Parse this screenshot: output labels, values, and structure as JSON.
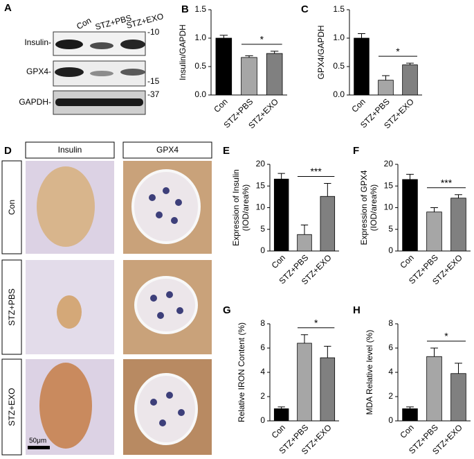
{
  "blot": {
    "label": "A",
    "lanes": [
      "Con",
      "STZ+PBS",
      "STZ+EXO"
    ],
    "bands": [
      "Insulin-",
      "GPX4-",
      "GAPDH-"
    ],
    "markers": [
      "-10",
      "-15",
      "-37"
    ]
  },
  "histology": {
    "label": "D",
    "columns": [
      "Insulin",
      "GPX4"
    ],
    "rows": [
      "Con",
      "STZ+PBS",
      "STZ+EXO"
    ],
    "scale_bar": "50μm"
  },
  "chart_data": [
    {
      "panel": "B",
      "type": "bar",
      "ylabel": [
        "Insulin/GAPDH"
      ],
      "categories": [
        "Con",
        "STZ+PBS",
        "STZ+EXO"
      ],
      "values": [
        1.0,
        0.66,
        0.73
      ],
      "errors": [
        0.05,
        0.03,
        0.04
      ],
      "colors": [
        "#000000",
        "#a6a6a6",
        "#808080"
      ],
      "ylim": [
        0,
        1.5
      ],
      "yticks": [
        {
          "value": 0,
          "label": "0.0"
        },
        0.5,
        {
          "value": 1,
          "label": "1.0"
        },
        1.5
      ],
      "significance": "*"
    },
    {
      "panel": "C",
      "type": "bar",
      "ylabel": [
        "GPX4/GAPDH"
      ],
      "categories": [
        "Con",
        "STZ+PBS",
        "STZ+EXO"
      ],
      "values": [
        1.0,
        0.26,
        0.53
      ],
      "errors": [
        0.08,
        0.08,
        0.03
      ],
      "colors": [
        "#000000",
        "#a6a6a6",
        "#808080"
      ],
      "ylim": [
        0,
        1.5
      ],
      "yticks": [
        {
          "value": 0,
          "label": "0.0"
        },
        0.5,
        {
          "value": 1,
          "label": "1.0"
        },
        1.5
      ],
      "significance": "*"
    },
    {
      "panel": "E",
      "type": "bar",
      "ylabel": [
        "Expression of Insulin",
        "(IOD/area%)"
      ],
      "categories": [
        "Con",
        "STZ+PBS",
        "STZ+EXO"
      ],
      "values": [
        16.6,
        3.8,
        12.6
      ],
      "errors": [
        1.3,
        2.2,
        3.0
      ],
      "colors": [
        "#000000",
        "#a6a6a6",
        "#808080"
      ],
      "ylim": [
        0,
        20
      ],
      "yticks": [
        0,
        5,
        10,
        15,
        20
      ],
      "significance": "***"
    },
    {
      "panel": "F",
      "type": "bar",
      "ylabel": [
        "Expression of GPX4",
        "(IOD/area%)"
      ],
      "categories": [
        "Con",
        "STZ+PBS",
        "STZ+EXO"
      ],
      "values": [
        16.5,
        9.0,
        12.2
      ],
      "errors": [
        1.2,
        1.0,
        0.8
      ],
      "colors": [
        "#000000",
        "#a6a6a6",
        "#808080"
      ],
      "ylim": [
        0,
        20
      ],
      "yticks": [
        0,
        5,
        10,
        15,
        20
      ],
      "significance": "***"
    },
    {
      "panel": "G",
      "type": "bar",
      "ylabel": [
        "Relative IRON Content (%)"
      ],
      "categories": [
        "Con",
        "STZ+PBS",
        "STZ+EXO"
      ],
      "values": [
        1.0,
        6.4,
        5.2
      ],
      "errors": [
        0.15,
        0.7,
        0.95
      ],
      "colors": [
        "#000000",
        "#a6a6a6",
        "#808080"
      ],
      "ylim": [
        0,
        8
      ],
      "yticks": [
        0,
        2,
        4,
        6,
        8
      ],
      "significance": "*"
    },
    {
      "panel": "H",
      "type": "bar",
      "ylabel": [
        "MDA Relative level (%)"
      ],
      "categories": [
        "Con",
        "STZ+PBS",
        "STZ+EXO"
      ],
      "values": [
        1.0,
        5.3,
        3.9
      ],
      "errors": [
        0.15,
        0.7,
        0.85
      ],
      "colors": [
        "#000000",
        "#a6a6a6",
        "#808080"
      ],
      "ylim": [
        0,
        8
      ],
      "yticks": [
        0,
        2,
        4,
        6,
        8
      ],
      "significance": "*"
    }
  ]
}
